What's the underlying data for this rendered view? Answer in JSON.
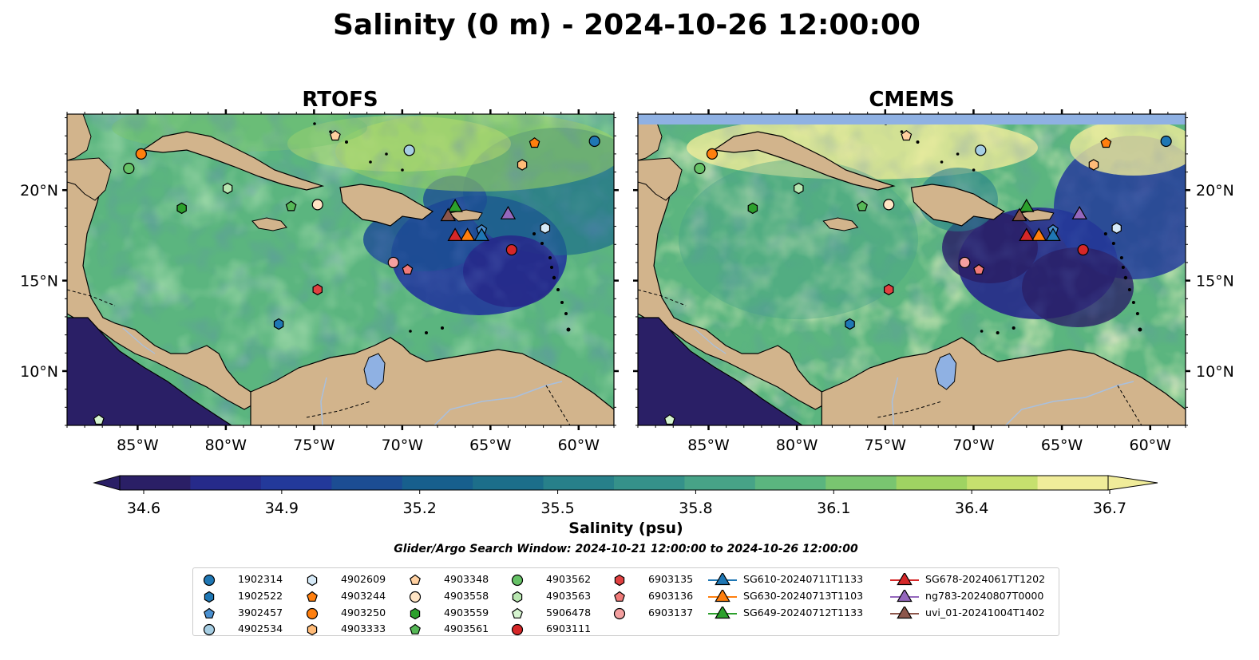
{
  "figure": {
    "title": "Salinity (0 m) - 2024-10-26 12:00:00",
    "subtitle": "Glider/Argo Search Window: 2024-10-21 12:00:00 to 2024-10-26 12:00:00"
  },
  "chart_data": {
    "type": "heatmap",
    "panels": [
      {
        "title": "RTOFS",
        "ytick_side": "left"
      },
      {
        "title": "CMEMS",
        "ytick_side": "right",
        "no_data_band_lat_min": 23.8
      }
    ],
    "map_extent": {
      "lon": [
        -89,
        -58
      ],
      "lat": [
        7,
        24.2
      ]
    },
    "xticks": [
      -85,
      -80,
      -75,
      -70,
      -65,
      -60
    ],
    "xtick_labels": [
      "85°W",
      "80°W",
      "75°W",
      "70°W",
      "65°W",
      "60°W"
    ],
    "yticks": [
      10,
      15,
      20
    ],
    "ytick_labels": [
      "10°N",
      "15°N",
      "20°N"
    ],
    "colorbar": {
      "label": "Salinity (psu)",
      "min": 34.6,
      "max": 36.7,
      "extend": "both",
      "ticks": [
        "34.6",
        "34.9",
        "35.2",
        "35.5",
        "35.8",
        "36.1",
        "36.4",
        "36.7"
      ],
      "colors": [
        "#2a1f66",
        "#262a8a",
        "#23399a",
        "#1c4d93",
        "#175f8d",
        "#1c6e8a",
        "#27808a",
        "#35918a",
        "#47a387",
        "#5bb57f",
        "#79c570",
        "#9fd362",
        "#c6e06e",
        "#f0ec9a"
      ]
    },
    "series": [
      {
        "name": "1902314",
        "marker": "circle",
        "color": "#1f77b4",
        "lon": -59.1,
        "lat": 22.7
      },
      {
        "name": "1902522",
        "marker": "hexagon",
        "color": "#1f77b4",
        "lon": -77.0,
        "lat": 12.6
      },
      {
        "name": "3902457",
        "marker": "pentagon",
        "color": "#4a90d0",
        "lon": -65.5,
        "lat": 17.8
      },
      {
        "name": "4902534",
        "marker": "circle",
        "color": "#a6cee3",
        "lon": -69.6,
        "lat": 22.2
      },
      {
        "name": "4902609",
        "marker": "hexagon",
        "color": "#d6eaf8",
        "lon": -61.9,
        "lat": 17.9
      },
      {
        "name": "4903244",
        "marker": "pentagon",
        "color": "#ff7f0e",
        "lon": -62.5,
        "lat": 22.6
      },
      {
        "name": "4903250",
        "marker": "circle",
        "color": "#ff7f0e",
        "lon": -84.8,
        "lat": 22.0
      },
      {
        "name": "4903333",
        "marker": "hexagon",
        "color": "#ffbb78",
        "lon": -63.2,
        "lat": 21.4
      },
      {
        "name": "4903348",
        "marker": "pentagon",
        "color": "#ffd0a0",
        "lon": -73.8,
        "lat": 23.0
      },
      {
        "name": "4903558",
        "marker": "circle",
        "color": "#ffe4c4",
        "lon": -74.8,
        "lat": 19.2
      },
      {
        "name": "4903559",
        "marker": "hexagon",
        "color": "#2ca02c",
        "lon": -82.5,
        "lat": 19.0
      },
      {
        "name": "4903561",
        "marker": "pentagon",
        "color": "#56b856",
        "lon": -76.3,
        "lat": 19.1
      },
      {
        "name": "4903562",
        "marker": "circle",
        "color": "#66c266",
        "lon": -85.5,
        "lat": 21.2
      },
      {
        "name": "4903563",
        "marker": "hexagon",
        "color": "#b8e6b0",
        "lon": -79.9,
        "lat": 20.1
      },
      {
        "name": "5906478",
        "marker": "pentagon",
        "color": "#d6f5d0",
        "lon": -87.2,
        "lat": 7.3
      },
      {
        "name": "6903111",
        "marker": "circle",
        "color": "#d62728",
        "lon": -63.8,
        "lat": 16.7
      },
      {
        "name": "6903135",
        "marker": "hexagon",
        "color": "#e04040",
        "lon": -74.8,
        "lat": 14.5
      },
      {
        "name": "6903136",
        "marker": "pentagon",
        "color": "#f07a78",
        "lon": -69.7,
        "lat": 15.6
      },
      {
        "name": "6903137",
        "marker": "circle",
        "color": "#f4a0a0",
        "lon": -70.5,
        "lat": 16.0
      },
      {
        "name": "SG610-20240711T1133",
        "marker": "triangle",
        "color": "#1f77b4",
        "lon": -65.5,
        "lat": 17.5,
        "line": true
      },
      {
        "name": "SG630-20240713T1103",
        "marker": "triangle",
        "color": "#ff7f0e",
        "lon": -66.3,
        "lat": 17.5,
        "line": true
      },
      {
        "name": "SG649-20240712T1133",
        "marker": "triangle",
        "color": "#2ca02c",
        "lon": -67.0,
        "lat": 19.1,
        "line": true
      },
      {
        "name": "SG678-20240617T1202",
        "marker": "triangle",
        "color": "#d62728",
        "lon": -67.0,
        "lat": 17.5,
        "line": true
      },
      {
        "name": "ng783-20240807T0000",
        "marker": "triangle",
        "color": "#9467bd",
        "lon": -64.0,
        "lat": 18.7,
        "line": true
      },
      {
        "name": "uvi_01-20241004T1402",
        "marker": "triangle",
        "color": "#8c564b",
        "lon": -67.4,
        "lat": 18.6,
        "line": true
      }
    ]
  }
}
